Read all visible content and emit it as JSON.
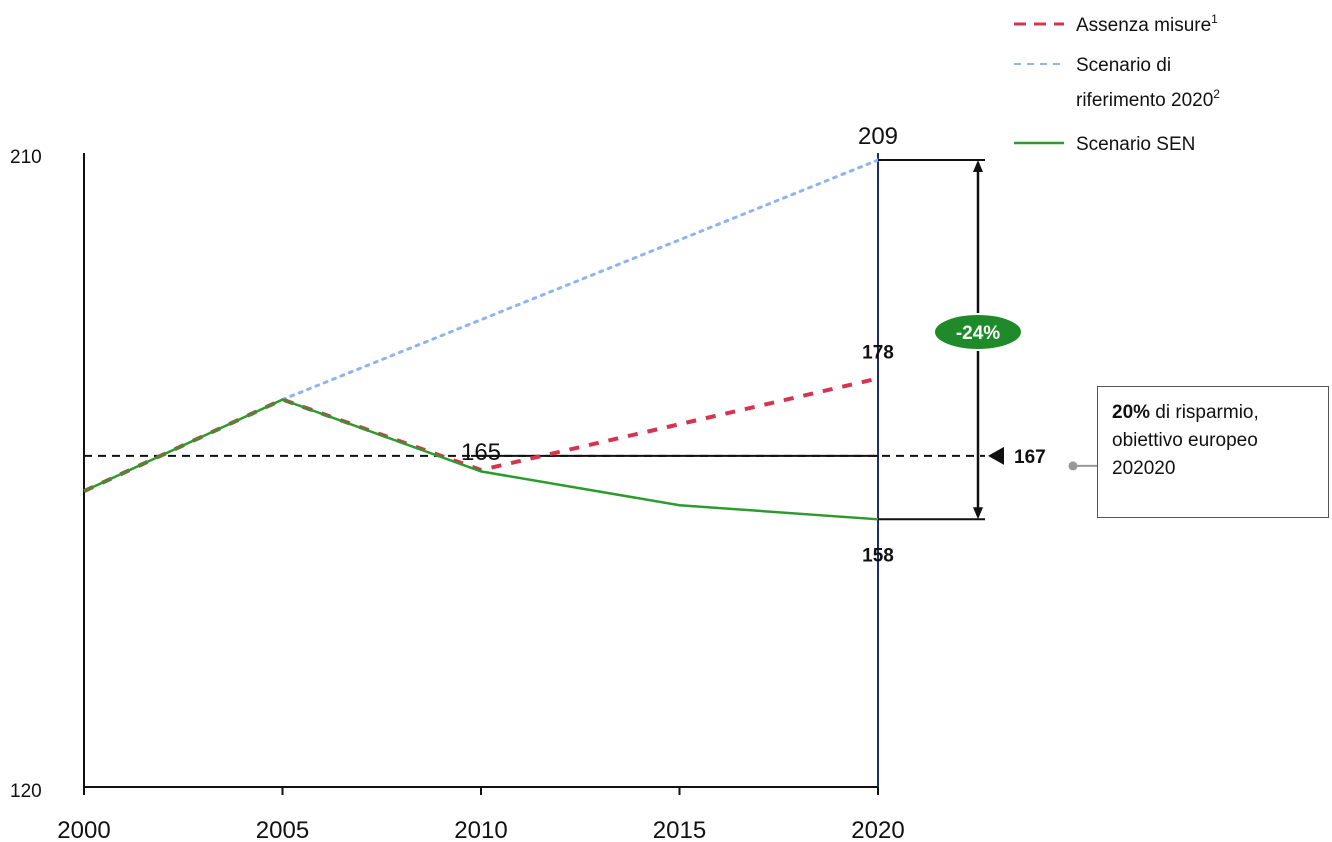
{
  "chart_data": {
    "type": "line",
    "x": [
      2000,
      2005,
      2010,
      2015,
      2020
    ],
    "xlim": [
      2000,
      2020
    ],
    "ylim": [
      120,
      210
    ],
    "ytick_labels": [
      "120",
      "210"
    ],
    "xtick_labels": [
      "2000",
      "2005",
      "2010",
      "2015",
      "2020"
    ],
    "grid": false,
    "legend_position": "top-right",
    "series": [
      {
        "name": "Assenza misure",
        "sup": "1",
        "color": "#d6334f",
        "style": "dashed",
        "x": [
          2000,
          2005,
          2010,
          2020
        ],
        "values": [
          162,
          175,
          165,
          178
        ]
      },
      {
        "name": "Scenario di riferimento 2020",
        "name_line1": "Scenario di",
        "name_line2": "riferimento 2020",
        "sup": "2",
        "color": "#8fb4ef",
        "style": "dotted",
        "x": [
          2005,
          2020
        ],
        "values": [
          175,
          209
        ]
      },
      {
        "name": "Scenario SEN",
        "color": "#2e9a2e",
        "style": "solid",
        "x": [
          2000,
          2005,
          2010,
          2015,
          2020
        ],
        "values": [
          162,
          175,
          164.8,
          160,
          158
        ]
      }
    ],
    "reference_line": {
      "value": 167,
      "color": "#111111",
      "style": "dashed"
    },
    "annotations": {
      "value_209": "209",
      "value_178": "178",
      "value_165": "165",
      "value_158": "158",
      "value_167": "167",
      "reduction_badge": "-24%",
      "badge_color": "#1f8a2a"
    },
    "callout": {
      "line1_bold": "20%",
      "line1_rest": " di risparmio,",
      "line2": "obiettivo europeo",
      "line3": "202020"
    }
  }
}
